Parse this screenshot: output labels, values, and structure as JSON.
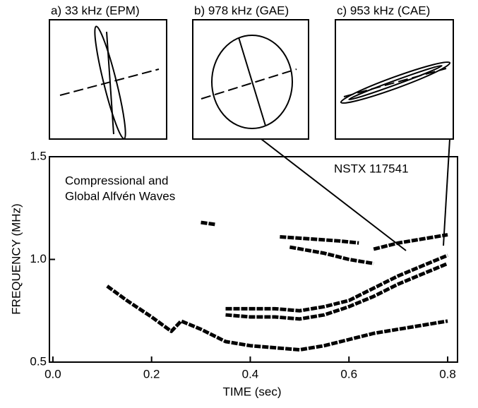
{
  "chart_data": {
    "type": "line",
    "x_label": "TIME (sec)",
    "y_label": "FREQUENCY (MHz)",
    "annotations": [
      "Compressional and",
      "Global Alfvén Waves",
      "NSTX 117541"
    ],
    "insets": [
      "a) 33 kHz (EPM)",
      "b) 978 kHz (GAE)",
      "c) 953 kHz (CAE)"
    ],
    "xlim": [
      -0.007,
      0.82
    ],
    "ylim": [
      0.5,
      1.5
    ],
    "xticks": [
      {
        "value": 0,
        "label": "0.0"
      },
      0.2,
      0.4,
      0.6,
      0.8
    ],
    "yticks": [
      0.5,
      {
        "value": 1,
        "label": "1.0"
      },
      1.5
    ],
    "color": "#000000",
    "series": [
      {
        "x": [
          0.11,
          0.15,
          0.2,
          0.24,
          0.26,
          0.3,
          0.35,
          0.4,
          0.45,
          0.5,
          0.55,
          0.6,
          0.65,
          0.7,
          0.75,
          0.8
        ],
        "values": [
          0.87,
          0.8,
          0.72,
          0.65,
          0.7,
          0.66,
          0.6,
          0.58,
          0.57,
          0.56,
          0.58,
          0.61,
          0.64,
          0.66,
          0.68,
          0.7
        ]
      },
      {
        "x": [
          0.35,
          0.4,
          0.45,
          0.5,
          0.55,
          0.6,
          0.65,
          0.7,
          0.75,
          0.8
        ],
        "values": [
          0.73,
          0.72,
          0.72,
          0.71,
          0.73,
          0.77,
          0.82,
          0.88,
          0.93,
          0.98
        ]
      },
      {
        "x": [
          0.35,
          0.45,
          0.5,
          0.55,
          0.6,
          0.65,
          0.7,
          0.75,
          0.8
        ],
        "values": [
          0.76,
          0.76,
          0.75,
          0.77,
          0.8,
          0.86,
          0.92,
          0.97,
          1.02
        ]
      },
      {
        "x": [
          0.46,
          0.52,
          0.58,
          0.62
        ],
        "values": [
          1.11,
          1.1,
          1.09,
          1.08
        ]
      },
      {
        "x": [
          0.48,
          0.55,
          0.6,
          0.65
        ],
        "values": [
          1.06,
          1.03,
          1.0,
          0.98
        ]
      },
      {
        "x": [
          0.3,
          0.33
        ],
        "values": [
          1.18,
          1.17
        ]
      },
      {
        "x": [
          0.65,
          0.7,
          0.75,
          0.8
        ],
        "values": [
          1.05,
          1.08,
          1.1,
          1.12
        ]
      }
    ]
  }
}
